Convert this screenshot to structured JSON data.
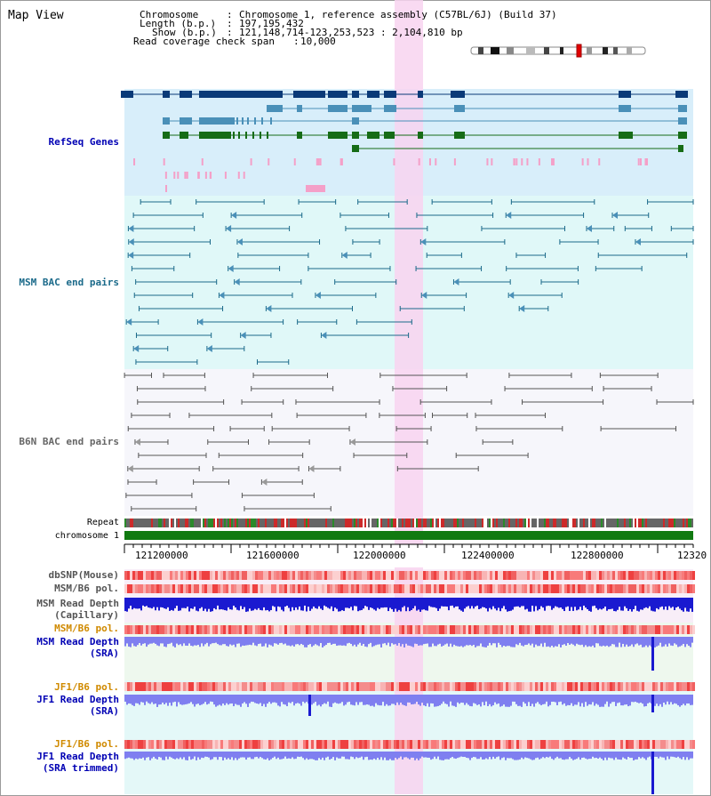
{
  "app_title": "Map View",
  "header": {
    "chromosome_label": "Chromosome",
    "chromosome_value": "Chromosome 1, reference assembly (C57BL/6J) (Build 37)",
    "length_label": "Length (b.p.)",
    "length_value": "197,195,432",
    "show_label": "Show (b.p.)",
    "show_value": "121,148,714-123,253,523 : 2,104,810 bp",
    "coverage_label": "Read coverage check span",
    "coverage_value": "10,000"
  },
  "tracks": {
    "refseq": "RefSeq Genes",
    "msm_bac": "MSM BAC end pairs",
    "b6n_bac": "B6N BAC end pairs",
    "repeat": "Repeat",
    "chromosome": "chromosome 1",
    "dbsnp": "dbSNP(Mouse)",
    "msm_pol": "MSM/B6 pol.",
    "msm_depth_cap_1": "MSM Read Depth",
    "msm_depth_cap_2": "(Capillary)",
    "msm_pol_sra": "MSM/B6 pol.",
    "msm_depth_sra_1": "MSM Read Depth",
    "msm_depth_sra_2": "(SRA)",
    "jf1_pol": "JF1/B6 pol.",
    "jf1_depth_1": "JF1 Read Depth",
    "jf1_depth_2": "(SRA)",
    "jf1_pol_t": "JF1/B6 pol.",
    "jf1_depth_t_1": "JF1 Read Depth",
    "jf1_depth_t_2": "(SRA trimmed)"
  },
  "axis": {
    "ticks": [
      "121200000",
      "121600000",
      "122000000",
      "122400000",
      "122800000",
      "12320"
    ]
  },
  "colors": {
    "refseq_bg": "#d8eefa",
    "msm_bg": "#e0f8f8",
    "b6n_bg": "#f6f6fb",
    "highlight": "#f8d4f0",
    "chromosome": "#117a11",
    "gene_navy": "#0a3a78",
    "gene_steel": "#4a90b8",
    "gene_green": "#166c16",
    "msm_line": "#1b6a8a",
    "b6n_line": "#555555",
    "snp": "#f06060",
    "depth": "#1a1ad0",
    "depth_light": "#7f7ff0",
    "label_blue": "#0000b4",
    "label_teal": "#1b6a8a",
    "label_orange": "#d08a00"
  }
}
